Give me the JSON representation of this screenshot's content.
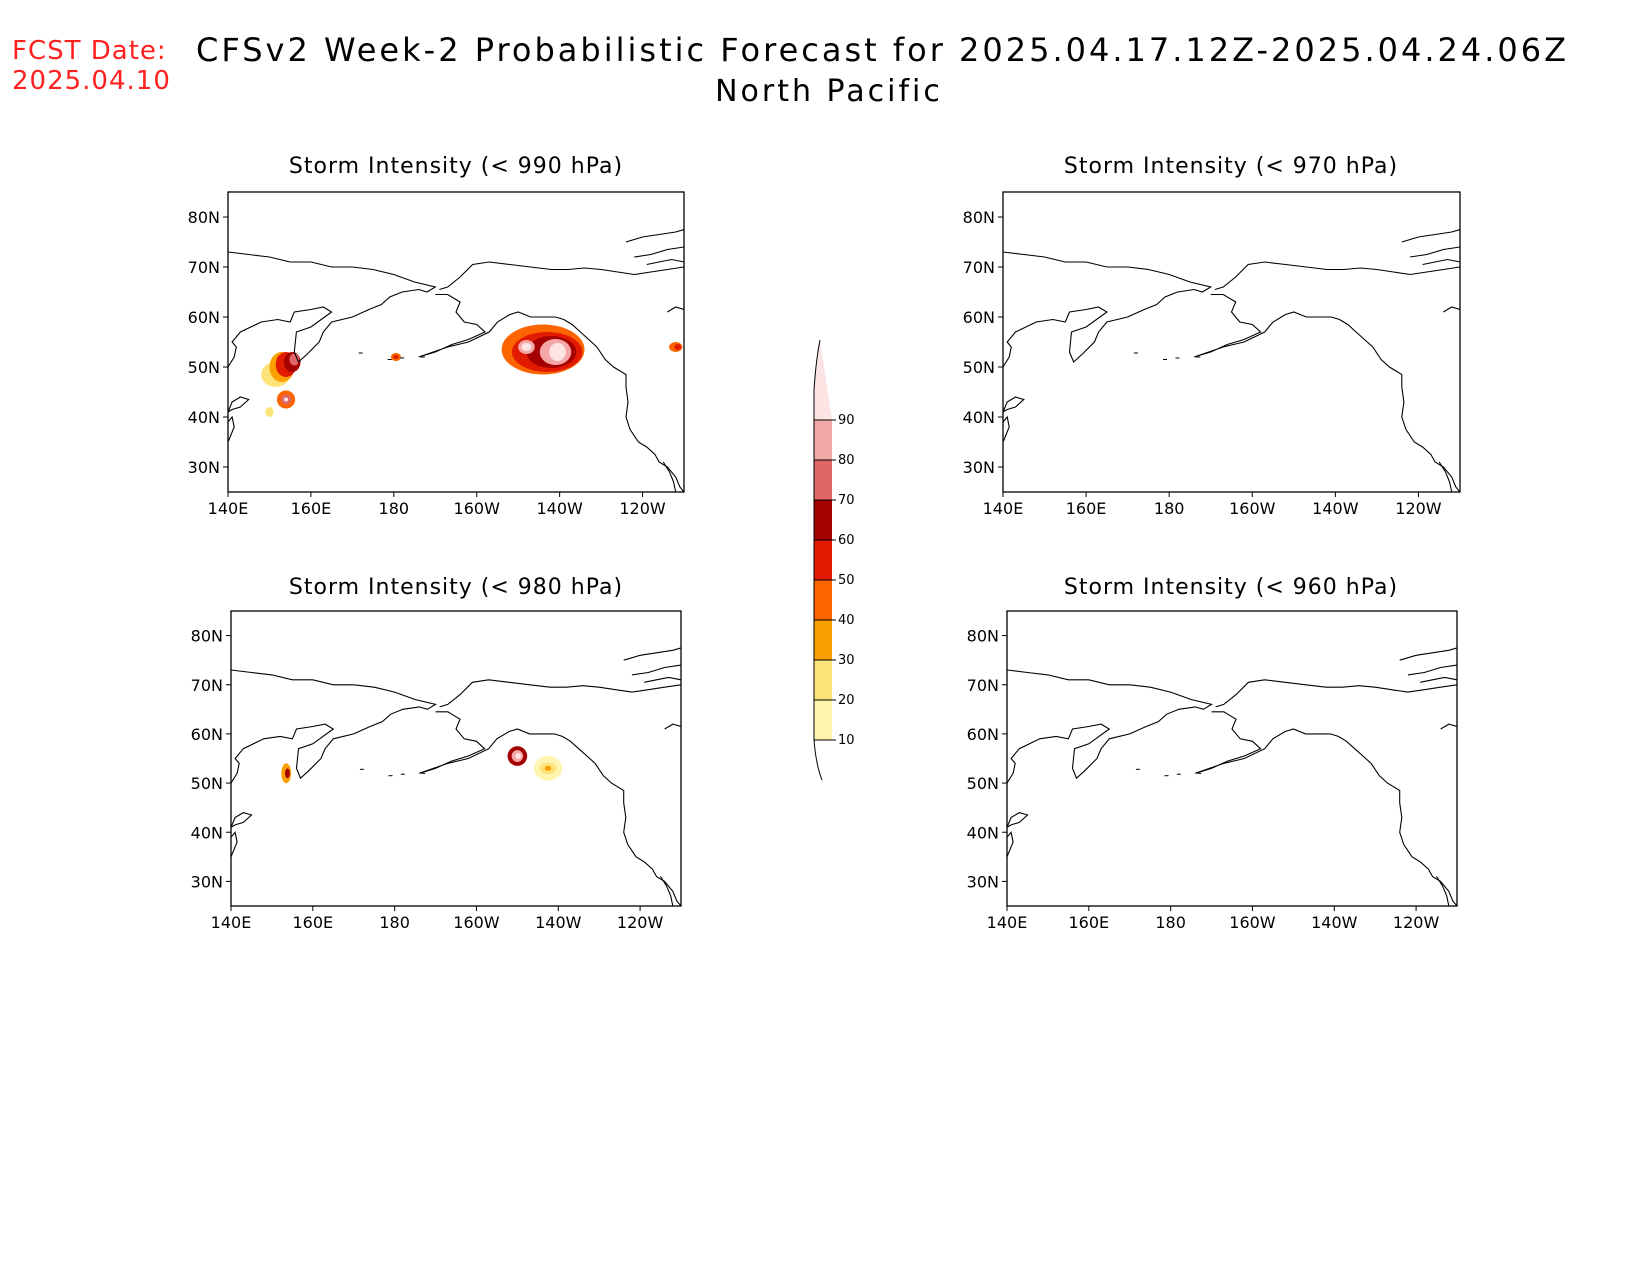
{
  "header": {
    "fcst_label": "FCST Date:",
    "fcst_date": "2025.04.10",
    "title": "CFSv2 Week-2 Probabilistic Forecast for 2025.04.17.12Z-2025.04.24.06Z",
    "region": "North Pacific"
  },
  "axes": {
    "lon_labels": [
      "140E",
      "160E",
      "180",
      "160W",
      "140W",
      "120W"
    ],
    "lat_labels": [
      "80N",
      "70N",
      "60N",
      "50N",
      "40N",
      "30N"
    ],
    "lon_values": [
      140,
      160,
      180,
      200,
      220,
      240
    ],
    "lat_values": [
      80,
      70,
      60,
      50,
      40,
      30
    ],
    "lon_range": [
      140,
      250
    ],
    "lat_range": [
      25,
      85
    ]
  },
  "colorbar": {
    "levels": [
      "10",
      "20",
      "30",
      "40",
      "50",
      "60",
      "70",
      "80",
      "90"
    ],
    "colors": [
      "#fff5b0",
      "#fde37a",
      "#fc9f00",
      "#fc6400",
      "#e11a00",
      "#a50000",
      "#e06666",
      "#f4a7a7",
      "#fde4e4"
    ]
  },
  "panels": [
    {
      "id": "p990",
      "title": "Storm Intensity (< 990 hPa)",
      "blobs": [
        {
          "lon": 151.5,
          "lat": 48.5,
          "rx": 3.5,
          "ry": 2.5,
          "level": 1
        },
        {
          "lon": 153.0,
          "lat": 50.0,
          "rx": 3.0,
          "ry": 3.0,
          "level": 2
        },
        {
          "lon": 154.0,
          "lat": 50.5,
          "rx": 2.5,
          "ry": 2.5,
          "level": 4
        },
        {
          "lon": 155.5,
          "lat": 51.0,
          "rx": 2.0,
          "ry": 2.0,
          "level": 5
        },
        {
          "lon": 156.0,
          "lat": 51.5,
          "rx": 1.2,
          "ry": 1.2,
          "level": 6
        },
        {
          "lon": 154.0,
          "lat": 43.5,
          "rx": 2.2,
          "ry": 1.8,
          "level": 3
        },
        {
          "lon": 154.0,
          "lat": 43.5,
          "rx": 1.2,
          "ry": 1.0,
          "level": 6
        },
        {
          "lon": 154.0,
          "lat": 43.5,
          "rx": 0.5,
          "ry": 0.4,
          "level": 8
        },
        {
          "lon": 150.0,
          "lat": 41.0,
          "rx": 1.0,
          "ry": 1.0,
          "level": 1
        },
        {
          "lon": 180.5,
          "lat": 52.0,
          "rx": 1.2,
          "ry": 0.8,
          "level": 3
        },
        {
          "lon": 180.5,
          "lat": 52.0,
          "rx": 0.6,
          "ry": 0.4,
          "level": 4
        },
        {
          "lon": 216.0,
          "lat": 53.5,
          "rx": 10.0,
          "ry": 5.0,
          "level": 3
        },
        {
          "lon": 217.0,
          "lat": 53.0,
          "rx": 8.5,
          "ry": 4.0,
          "level": 4
        },
        {
          "lon": 218.0,
          "lat": 53.0,
          "rx": 6.0,
          "ry": 3.2,
          "level": 5
        },
        {
          "lon": 219.0,
          "lat": 53.0,
          "rx": 3.8,
          "ry": 2.6,
          "level": 7
        },
        {
          "lon": 219.5,
          "lat": 53.0,
          "rx": 2.0,
          "ry": 1.8,
          "level": 8
        },
        {
          "lon": 212.0,
          "lat": 54.0,
          "rx": 2.0,
          "ry": 1.4,
          "level": 7
        },
        {
          "lon": 212.0,
          "lat": 54.0,
          "rx": 1.2,
          "ry": 0.8,
          "level": 8
        },
        {
          "lon": 248.0,
          "lat": 54.0,
          "rx": 1.6,
          "ry": 1.0,
          "level": 3
        },
        {
          "lon": 248.5,
          "lat": 54.0,
          "rx": 0.8,
          "ry": 0.6,
          "level": 4
        }
      ]
    },
    {
      "id": "p970",
      "title": "Storm Intensity (< 970 hPa)",
      "blobs": []
    },
    {
      "id": "p980",
      "title": "Storm Intensity (< 980 hPa)",
      "blobs": [
        {
          "lon": 153.5,
          "lat": 52.0,
          "rx": 1.2,
          "ry": 2.0,
          "level": 2
        },
        {
          "lon": 153.8,
          "lat": 52.0,
          "rx": 0.6,
          "ry": 1.0,
          "level": 5
        },
        {
          "lon": 210.0,
          "lat": 55.5,
          "rx": 2.4,
          "ry": 2.0,
          "level": 5
        },
        {
          "lon": 210.0,
          "lat": 55.5,
          "rx": 1.4,
          "ry": 1.2,
          "level": 7
        },
        {
          "lon": 210.2,
          "lat": 55.5,
          "rx": 0.7,
          "ry": 0.6,
          "level": 8
        },
        {
          "lon": 217.5,
          "lat": 53.0,
          "rx": 3.5,
          "ry": 2.5,
          "level": 0
        },
        {
          "lon": 217.5,
          "lat": 53.0,
          "rx": 2.0,
          "ry": 1.2,
          "level": 1
        },
        {
          "lon": 217.5,
          "lat": 53.0,
          "rx": 0.8,
          "ry": 0.5,
          "level": 2
        }
      ]
    },
    {
      "id": "p960",
      "title": "Storm Intensity (< 960 hPa)",
      "blobs": []
    }
  ]
}
